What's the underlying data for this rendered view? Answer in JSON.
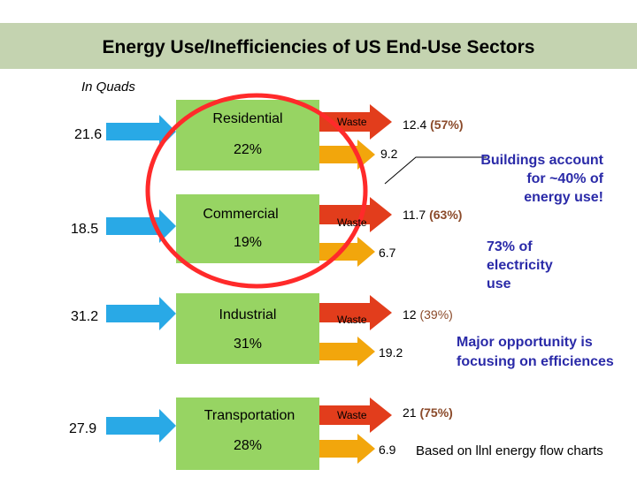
{
  "title": "Energy Use/Inefficiencies of US End-Use Sectors",
  "subtitle": "In Quads",
  "colors": {
    "input_arrow": "#29a9e6",
    "sector_box": "#97d463",
    "waste_arrow": "#e23d1c",
    "use_arrow": "#f2a60c",
    "highlight_circle": "#ff2a2a",
    "callout_text": "#2a2aa8",
    "percent_text": "#8b4a2a"
  },
  "sectors": [
    {
      "name": "Residential",
      "input": "21.6",
      "share": "22%",
      "waste_label": "Waste",
      "waste_value": "12.4",
      "waste_pct": "(57%)",
      "use_value": "9.2"
    },
    {
      "name": "Commercial",
      "input": "18.5",
      "share": "19%",
      "waste_label": "Waste",
      "waste_value": "11.7",
      "waste_pct": "(63%)",
      "use_value": "6.7"
    },
    {
      "name": "Industrial",
      "input": "31.2",
      "share": "31%",
      "waste_label": "Waste",
      "waste_value": "12",
      "waste_pct": "(39%)",
      "use_value": "19.2"
    },
    {
      "name": "Transportation",
      "input": "27.9",
      "share": "28%",
      "waste_label": "Waste",
      "waste_value": "21",
      "waste_pct": "(75%)",
      "use_value": "6.9"
    }
  ],
  "callouts": {
    "buildings": "Buildings account for ~40% of energy use!",
    "electricity": "73% of electricity use",
    "opportunity": "Major opportunity is focusing on efficiences"
  },
  "footer": "Based on llnl energy flow charts"
}
